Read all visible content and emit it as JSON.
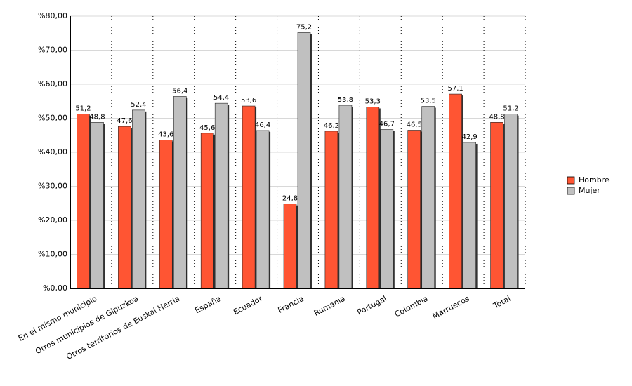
{
  "chart_data": {
    "type": "bar",
    "categories": [
      "En el mismo municipio",
      "Otros municipios de Gipuzkoa",
      "Otros territorios de Euskal Herria",
      "España",
      "Ecuador",
      "Francia",
      "Rumania",
      "Portugal",
      "Colombia",
      "Marruecos",
      "Total"
    ],
    "series": [
      {
        "name": "Hombre",
        "color": "#ff5533",
        "values": [
          51.2,
          47.6,
          43.6,
          45.6,
          53.6,
          24.8,
          46.2,
          53.3,
          46.5,
          57.1,
          48.8
        ],
        "value_labels": [
          "51,2",
          "47,6",
          "43,6",
          "45,6",
          "53,6",
          "24,8",
          "46,2",
          "53,3",
          "46,5",
          "57,1",
          "48,8"
        ]
      },
      {
        "name": "Mujer",
        "color": "#c0c0c0",
        "values": [
          48.8,
          52.4,
          56.4,
          54.4,
          46.4,
          75.2,
          53.8,
          46.7,
          53.5,
          42.9,
          51.2
        ],
        "value_labels": [
          "48,8",
          "52,4",
          "56,4",
          "54,4",
          "46,4",
          "75,2",
          "53,8",
          "46,7",
          "53,5",
          "42,9",
          "51,2"
        ]
      }
    ],
    "ylim": [
      0,
      80
    ],
    "yticks": [
      {
        "value": 0,
        "label": "%0,00"
      },
      {
        "value": 10,
        "label": "%10,00"
      },
      {
        "value": 20,
        "label": "%20,00"
      },
      {
        "value": 30,
        "label": "%30,00"
      },
      {
        "value": 40,
        "label": "%40,00"
      },
      {
        "value": 50,
        "label": "%50,00"
      },
      {
        "value": 60,
        "label": "%60,00"
      },
      {
        "value": 70,
        "label": "%70,00"
      },
      {
        "value": 80,
        "label": "%80,00"
      }
    ],
    "grid": true,
    "legend": "right"
  }
}
